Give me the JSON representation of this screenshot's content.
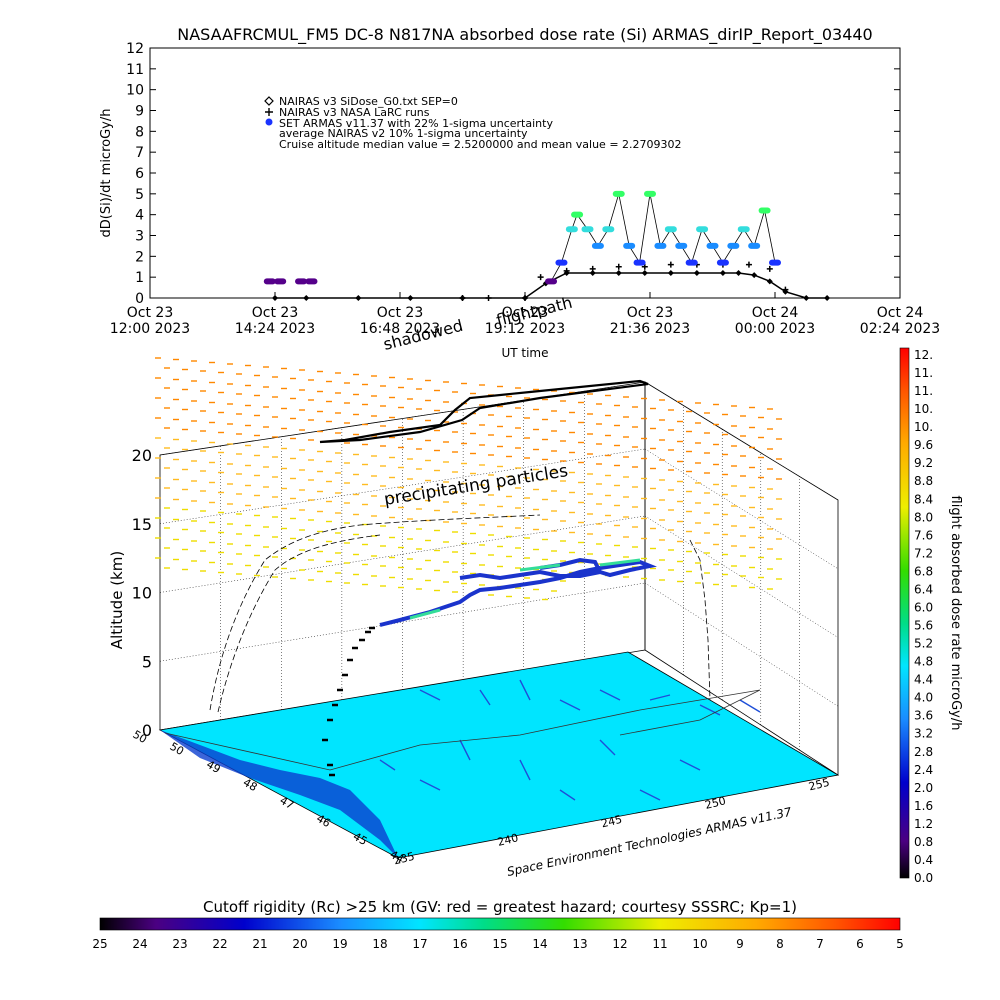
{
  "title": "NASAAFRCMUL_FM5 DC-8   N817NA absorbed dose rate (Si) ARMAS_dirIP_Report_03440",
  "chart_data": [
    {
      "type": "scatter",
      "ylabel": "dD(Si)/dt microGy/h",
      "xlabel": "UT time",
      "ylim": [
        0,
        12
      ],
      "y_ticks": [
        "0",
        "1",
        "2",
        "3",
        "4",
        "5",
        "6",
        "7",
        "8",
        "9",
        "10",
        "11",
        "12"
      ],
      "x_ticks": [
        {
          "line1": "Oct 23",
          "line2": "12:00 2023"
        },
        {
          "line1": "Oct 23",
          "line2": "14:24 2023"
        },
        {
          "line1": "Oct 23",
          "line2": "16:48 2023"
        },
        {
          "line1": "Oct 23",
          "line2": "19:12 2023"
        },
        {
          "line1": "Oct 23",
          "line2": "21:36 2023"
        },
        {
          "line1": "Oct 24",
          "line2": "00:00 2023"
        },
        {
          "line1": "Oct 24",
          "line2": "02:24 2023"
        }
      ],
      "xlim_hours": [
        0,
        14.4
      ],
      "legend": [
        "NAIRAS v3 SiDose_G0.txt SEP=0",
        "NAIRAS v3 NASA LaRC runs",
        "SET ARMAS v11.37 with 22% 1-sigma uncertainty",
        "average NAIRAS v2 10% 1-sigma uncertainty",
        "Cruise altitude median value = 2.5200000 and mean value = 2.2709302"
      ],
      "legend_placement": "top-left",
      "overlay_labels": [
        "flightpath",
        "shadowed"
      ],
      "series": [
        {
          "name": "NAIRAS v3 SiDose_G0.txt SEP=0",
          "marker": "diamond",
          "color": "#000000",
          "x_hours": [
            2.4,
            3.0,
            4.0,
            5.0,
            6.0,
            7.2,
            7.6,
            8.0,
            8.5,
            9.0,
            9.5,
            10.0,
            10.5,
            11.0,
            11.3,
            11.6,
            11.9,
            12.2,
            12.6,
            13.0
          ],
          "y": [
            0,
            0,
            0,
            0,
            0,
            0,
            0.7,
            1.2,
            1.2,
            1.2,
            1.2,
            1.2,
            1.2,
            1.2,
            1.2,
            1.1,
            0.8,
            0.3,
            0,
            0
          ]
        },
        {
          "name": "NAIRAS v3 NASA LaRC runs",
          "marker": "plus",
          "color": "#000000",
          "x_hours": [
            6.0,
            6.5,
            7.2,
            7.5,
            8.0,
            8.5,
            9.0,
            9.5,
            10.0,
            10.5,
            11.0,
            11.5,
            11.9,
            12.2
          ],
          "y": [
            0,
            0,
            0,
            1.0,
            1.3,
            1.4,
            1.5,
            1.5,
            1.6,
            1.6,
            1.6,
            1.6,
            1.4,
            0.4
          ]
        },
        {
          "name": "SET ARMAS v11.37 with 22% 1-sigma uncertainty",
          "marker": "filled-circle",
          "color_scale": "dose rate microGy/h",
          "x_hours": [
            2.3,
            2.5,
            2.9,
            3.1,
            7.7,
            7.9,
            8.1,
            8.2,
            8.4,
            8.6,
            8.8,
            9.0,
            9.2,
            9.4,
            9.6,
            9.8,
            10.0,
            10.2,
            10.4,
            10.6,
            10.8,
            11.0,
            11.2,
            11.4,
            11.6,
            11.8,
            12.0
          ],
          "y": [
            0.8,
            0.8,
            0.8,
            0.8,
            0.8,
            1.7,
            3.3,
            4.0,
            3.3,
            2.5,
            3.3,
            5.0,
            2.5,
            1.7,
            5.0,
            2.5,
            3.3,
            2.5,
            1.7,
            3.3,
            2.5,
            1.7,
            2.5,
            3.3,
            2.5,
            4.2,
            1.7
          ]
        }
      ]
    },
    {
      "type": "3d-flightpath",
      "zlabel": "Altitude (km)",
      "z_ticks": [
        "0",
        "5",
        "10",
        "15",
        "20"
      ],
      "zlim": [
        0,
        20
      ],
      "x_ticks": [
        "235",
        "240",
        "245",
        "250",
        "255"
      ],
      "y_ticks": [
        "44",
        "45",
        "46",
        "47",
        "48",
        "49",
        "50"
      ],
      "annotations": [
        "precipitating particles",
        "Space Environment Technologies ARMAS v11.37"
      ]
    }
  ],
  "colorbar_right": {
    "label": "flight absorbed dose rate microGy/h",
    "ticks": [
      "12.",
      "11.",
      "11.",
      "10.",
      "10.",
      "9.6",
      "9.2",
      "8.8",
      "8.4",
      "8.0",
      "7.6",
      "7.2",
      "6.8",
      "6.4",
      "6.0",
      "5.6",
      "5.2",
      "4.8",
      "4.4",
      "4.0",
      "3.6",
      "3.2",
      "2.8",
      "2.4",
      "2.0",
      "1.6",
      "1.2",
      "0.8",
      "0.4",
      "0.0"
    ]
  },
  "colorbar_bottom": {
    "label": "Cutoff rigidity (Rc) >25 km (GV: red = greatest hazard; courtesy SSSRC; Kp=1)",
    "ticks": [
      "25",
      "24",
      "23",
      "22",
      "21",
      "20",
      "19",
      "18",
      "17",
      "16",
      "15",
      "14",
      "13",
      "12",
      "11",
      "10",
      "9",
      "8",
      "7",
      "6",
      "5"
    ]
  },
  "colors": {
    "ground": "#00e5ff",
    "cruise_points": "#1a8cff",
    "high_points": "#33ff66",
    "low_points": "#55008a"
  }
}
